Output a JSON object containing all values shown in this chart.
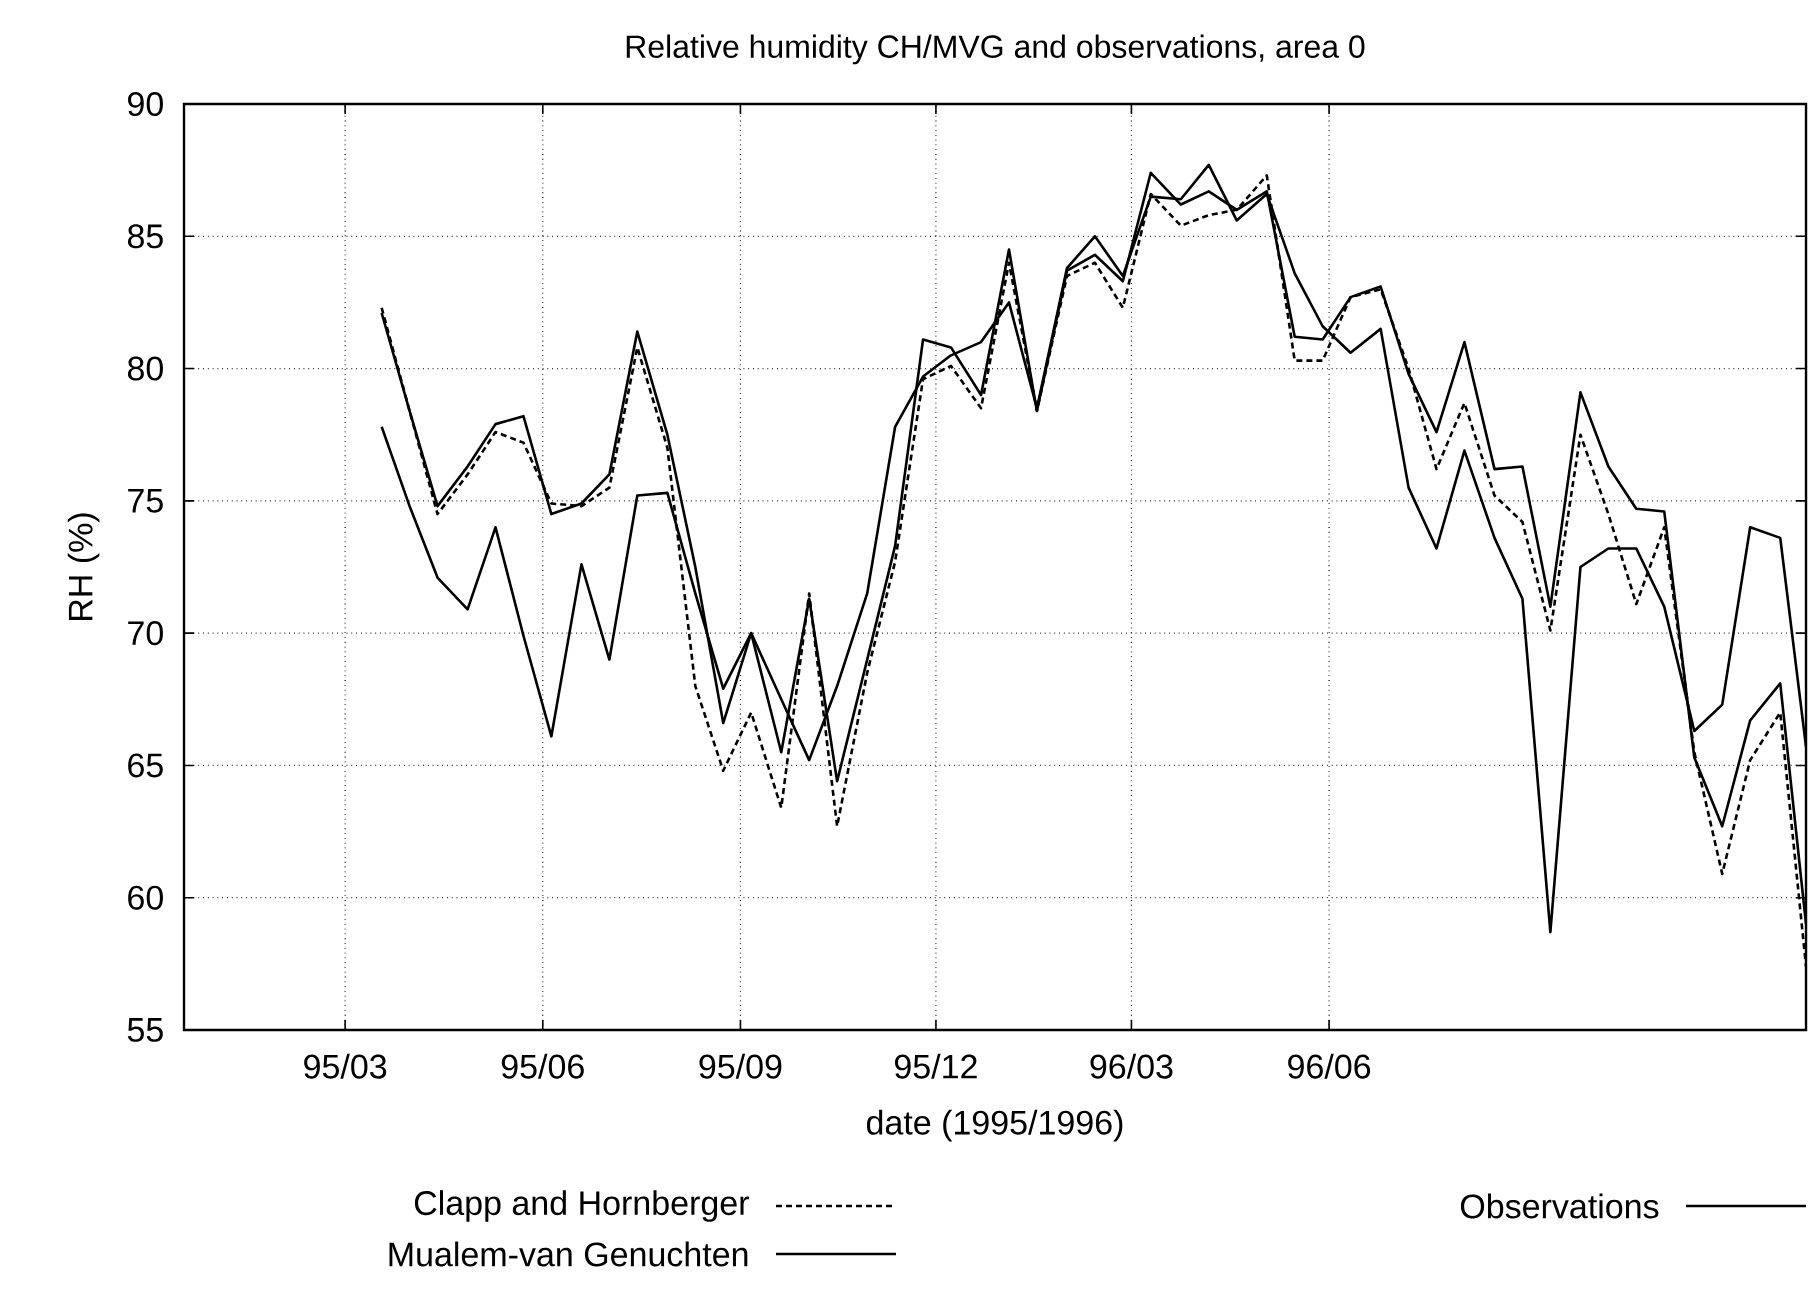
{
  "chart_data": {
    "type": "line",
    "title": "Relative humidity CH/MVG and observations, area 0",
    "xlabel": "date (1995/1996)",
    "ylabel": "RH (%)",
    "x": [
      "1995-03-18",
      "1995-03-31",
      "1995-04-13",
      "1995-04-27",
      "1995-05-10",
      "1995-05-23",
      "1995-06-05",
      "1995-06-19",
      "1995-07-02",
      "1995-07-15",
      "1995-07-29",
      "1995-08-11",
      "1995-08-24",
      "1995-09-06",
      "1995-09-20",
      "1995-10-03",
      "1995-10-16",
      "1995-10-30",
      "1995-11-12",
      "1995-11-25",
      "1995-12-08",
      "1995-12-22",
      "1996-01-04",
      "1996-01-17",
      "1996-01-31",
      "1996-02-13",
      "1996-02-26",
      "1996-03-10",
      "1996-03-24",
      "1996-04-06",
      "1996-04-19",
      "1996-05-03",
      "1996-05-16",
      "1996-05-29",
      "1996-06-11",
      "1996-06-25",
      "1996-07-08",
      "1996-07-21",
      "1996-08-03",
      "1996-08-17",
      "1996-08-30",
      "1996-09-12",
      "1996-09-26",
      "1996-10-09",
      "1996-10-22",
      "1996-11-04",
      "1996-11-18",
      "1996-12-01",
      "1996-12-14",
      "1996-12-28",
      "1997-01-09"
    ],
    "series": [
      {
        "name": "Clapp and Hornberger",
        "color": "#000000",
        "line_style": "dashed",
        "values": [
          82.3,
          78.4,
          74.5,
          76.0,
          77.6,
          77.2,
          74.9,
          74.8,
          75.5,
          80.8,
          77.0,
          68.0,
          64.8,
          67.0,
          63.4,
          71.5,
          62.7,
          68.5,
          72.7,
          79.6,
          80.1,
          78.5,
          84.0,
          78.4,
          83.5,
          84.0,
          82.3,
          86.6,
          85.4,
          85.8,
          86.0,
          87.3,
          80.3,
          80.3,
          82.7,
          83.0,
          80.0,
          76.2,
          78.7,
          75.2,
          74.2,
          70.1,
          77.5,
          74.5,
          71.1,
          74.0,
          65.5,
          60.9,
          65.2,
          67.0,
          57.4
        ]
      },
      {
        "name": "Mualem-van Genuchten",
        "color": "#000000",
        "line_style": "solid",
        "values": [
          82.1,
          78.4,
          74.8,
          76.3,
          77.9,
          78.2,
          74.5,
          74.9,
          76.0,
          81.4,
          77.5,
          72.5,
          66.6,
          70.0,
          65.5,
          71.3,
          64.4,
          69.0,
          73.3,
          81.1,
          80.8,
          79.0,
          84.5,
          78.4,
          83.7,
          84.3,
          83.3,
          87.4,
          86.2,
          86.7,
          86.0,
          86.7,
          81.2,
          81.1,
          82.7,
          83.1,
          79.8,
          77.6,
          81.0,
          76.2,
          76.3,
          71.0,
          79.1,
          76.3,
          74.7,
          74.6,
          65.3,
          62.7,
          66.7,
          68.1,
          59.0
        ]
      },
      {
        "name": "Observations",
        "color": "#000000",
        "line_style": "solid",
        "values": [
          77.8,
          74.8,
          72.1,
          70.9,
          74.0,
          69.9,
          66.1,
          72.6,
          69.0,
          75.2,
          75.3,
          71.5,
          67.9,
          70.0,
          67.5,
          65.2,
          68.0,
          71.5,
          77.8,
          79.7,
          80.5,
          81.0,
          82.5,
          78.5,
          83.8,
          85.0,
          83.5,
          86.5,
          86.4,
          87.7,
          85.6,
          86.6,
          83.6,
          81.6,
          80.6,
          81.5,
          75.5,
          73.2,
          76.9,
          73.6,
          71.3,
          58.7,
          72.5,
          73.2,
          73.2,
          71.0,
          66.3,
          67.3,
          74.0,
          73.6,
          65.7
        ]
      }
    ],
    "xlim": [
      "1994-12-16",
      "1997-01-09"
    ],
    "xticks": [
      {
        "value": "1995-03-01",
        "label": "95/03"
      },
      {
        "value": "1995-06-01",
        "label": "95/06"
      },
      {
        "value": "1995-09-01",
        "label": "95/09"
      },
      {
        "value": "1995-12-01",
        "label": "95/12"
      },
      {
        "value": "1996-03-01",
        "label": "96/03"
      },
      {
        "value": "1996-06-01",
        "label": "96/06"
      }
    ],
    "ylim": [
      55,
      90
    ],
    "yticks": [
      55,
      60,
      65,
      70,
      75,
      80,
      85,
      90
    ],
    "grid": true,
    "legend": "bottom",
    "marker": "none"
  }
}
